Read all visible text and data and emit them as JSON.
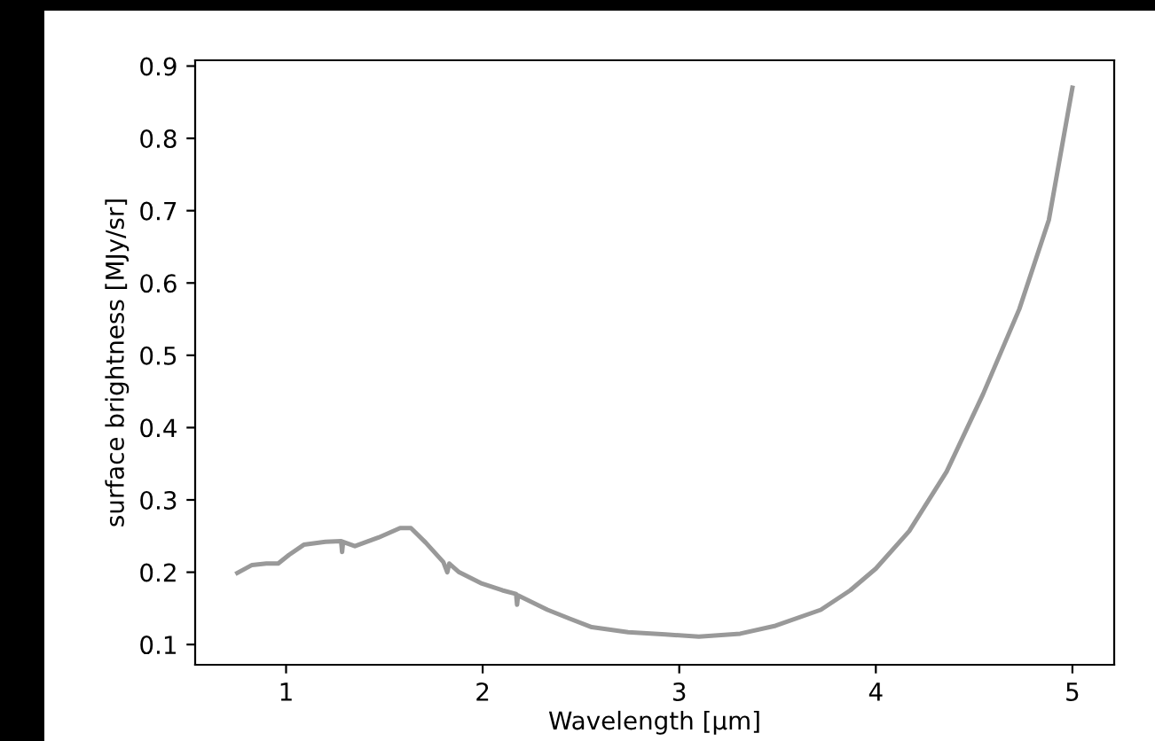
{
  "chart_data": {
    "type": "line",
    "xlabel": "Wavelength [μm]",
    "ylabel": "surface brightness [MJy/sr]",
    "xlim": [
      0.5375,
      5.2125
    ],
    "ylim": [
      0.072,
      0.908
    ],
    "xticks": [
      1,
      2,
      3,
      4,
      5
    ],
    "yticks": [
      0.1,
      0.2,
      0.3,
      0.4,
      0.5,
      0.6,
      0.7,
      0.8,
      0.9
    ],
    "grid": false,
    "legend": false,
    "marker": "none",
    "line_style": "solid",
    "series": [
      {
        "color": "#999999",
        "x": [
          0.752,
          0.827,
          0.9,
          0.96,
          1.015,
          1.09,
          1.2,
          1.28,
          1.285,
          1.29,
          1.35,
          1.47,
          1.58,
          1.635,
          1.71,
          1.8,
          1.82,
          1.83,
          1.88,
          1.99,
          2.1,
          2.17,
          2.175,
          2.18,
          2.33,
          2.44,
          2.555,
          2.74,
          2.93,
          3.1,
          3.31,
          3.49,
          3.72,
          3.87,
          4.0,
          4.17,
          4.36,
          4.545,
          4.73,
          4.88,
          5.0
        ],
        "values": [
          0.199,
          0.21,
          0.212,
          0.212,
          0.224,
          0.238,
          0.242,
          0.243,
          0.228,
          0.242,
          0.236,
          0.248,
          0.261,
          0.261,
          0.241,
          0.214,
          0.2,
          0.212,
          0.2,
          0.185,
          0.175,
          0.17,
          0.155,
          0.168,
          0.148,
          0.136,
          0.124,
          0.117,
          0.114,
          0.111,
          0.115,
          0.126,
          0.148,
          0.175,
          0.205,
          0.257,
          0.339,
          0.446,
          0.564,
          0.687,
          0.87
        ]
      }
    ]
  }
}
